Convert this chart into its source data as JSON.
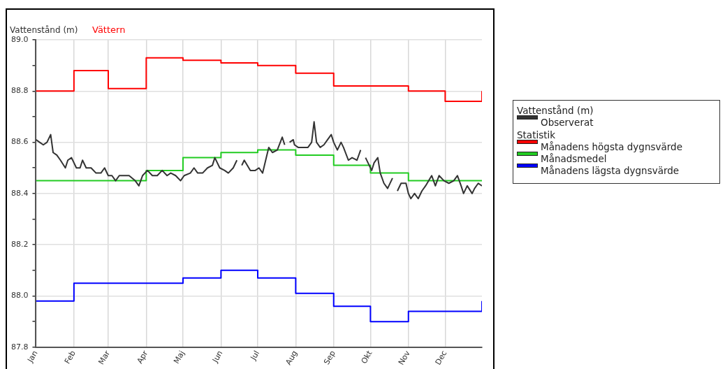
{
  "chart_data": {
    "type": "line",
    "title": "Vättern",
    "ylabel": "Vattenstånd (m)",
    "legend_title": "Vattenstånd (m)",
    "annotations": [
      "Statistik"
    ],
    "xlim": [
      "--01-01",
      "--12-31"
    ],
    "xticks": [
      {
        "value": "--01-01",
        "label": "Jan"
      },
      {
        "value": "--02-01",
        "label": "Feb"
      },
      {
        "value": "--03-01",
        "label": "Mar"
      },
      {
        "value": "--04-01",
        "label": "Apr"
      },
      {
        "value": "--05-01",
        "label": "Maj"
      },
      {
        "value": "--06-01",
        "label": "Jun"
      },
      {
        "value": "--07-01",
        "label": "Jul"
      },
      {
        "value": "--08-01",
        "label": "Aug"
      },
      {
        "value": "--09-01",
        "label": "Sep"
      },
      {
        "value": "--10-01",
        "label": "Okt"
      },
      {
        "value": "--11-01",
        "label": "Nov"
      },
      {
        "value": "--12-01",
        "label": "Dec"
      }
    ],
    "ylim": [
      87.8,
      89.0
    ],
    "yticks": [
      {
        "value": 87.8,
        "label": "87.8"
      },
      {
        "value": 87.9,
        "label": null
      },
      {
        "value": 88.0,
        "label": "88.0"
      },
      {
        "value": 88.1,
        "label": null
      },
      {
        "value": 88.2,
        "label": "88.2"
      },
      {
        "value": 88.3,
        "label": null
      },
      {
        "value": 88.4,
        "label": "88.4"
      },
      {
        "value": 88.5,
        "label": null
      },
      {
        "value": 88.6,
        "label": "88.6"
      },
      {
        "value": 88.7,
        "label": null
      },
      {
        "value": 88.8,
        "label": "88.8"
      },
      {
        "value": 88.9,
        "label": null
      },
      {
        "value": 89.0,
        "label": "89.0"
      }
    ],
    "grid": true,
    "legend": "right",
    "marker": "none",
    "line_style": "solid",
    "series": [
      {
        "name": "Observerat",
        "color": "#333333",
        "x": [
          "--01-01",
          "--01-04",
          "--01-07",
          "--01-10",
          "--01-13",
          "--01-15",
          "--01-18",
          "--01-21",
          "--01-25",
          "--01-27",
          "--01-30",
          "--02-03",
          "--02-06",
          "--02-08",
          "--02-11",
          "--02-15",
          "--02-19",
          "--02-23",
          "--02-26",
          "--03-01",
          "--03-04",
          "--03-07",
          "--03-10",
          "--03-14",
          "--03-18",
          "--03-23",
          "--03-26",
          "--03-29",
          "--04-02",
          "--04-06",
          "--04-10",
          "--04-14",
          "--04-18",
          "--04-21",
          "--04-25",
          "--04-29",
          "--05-02",
          "--05-07",
          "--05-10",
          "--05-13",
          "--05-17",
          "--05-21",
          "--05-25",
          "--05-27",
          "--05-31",
          "--06-04",
          "--06-07",
          "--06-11",
          "--06-14",
          "--06-16",
          "--06-18",
          "--06-20",
          "--06-25",
          "--06-29",
          "--07-02",
          "--07-05",
          "--07-08",
          "--07-10",
          "--07-13",
          "--07-17",
          "--07-21",
          "--07-23",
          "--07-25",
          "--07-27",
          "--07-30",
          "--07-31",
          "--08-03",
          "--08-07",
          "--08-11",
          "--08-14",
          "--08-16",
          "--08-18",
          "--08-21",
          "--08-24",
          "--08-27",
          "--08-30",
          "--09-01",
          "--09-04",
          "--09-07",
          "--09-09",
          "--09-13",
          "--09-16",
          "--09-20",
          "--09-23",
          "--09-25",
          "--09-27",
          "--10-02",
          "--10-04",
          "--10-07",
          "--10-09",
          "--10-12",
          "--10-15",
          "--10-19",
          "--10-21",
          "--10-23",
          "--10-26",
          "--10-30",
          "--11-01",
          "--11-03",
          "--11-06",
          "--11-09",
          "--11-12",
          "--11-15",
          "--11-20",
          "--11-23",
          "--11-26",
          "--11-30",
          "--12-04",
          "--12-08",
          "--12-11",
          "--12-14",
          "--12-16",
          "--12-19",
          "--12-23",
          "--12-25",
          "--12-28",
          "--12-31"
        ],
        "values": [
          88.61,
          88.6,
          88.59,
          88.6,
          88.63,
          88.56,
          88.55,
          88.53,
          88.5,
          88.53,
          88.54,
          88.5,
          88.5,
          88.53,
          88.5,
          88.5,
          88.48,
          88.48,
          88.5,
          88.47,
          88.47,
          88.45,
          88.47,
          88.47,
          88.47,
          88.45,
          88.43,
          88.47,
          88.49,
          88.47,
          88.47,
          88.49,
          88.47,
          88.48,
          88.47,
          88.45,
          88.47,
          88.48,
          88.5,
          88.48,
          88.48,
          88.5,
          88.51,
          88.54,
          88.5,
          88.49,
          88.48,
          88.5,
          88.53,
          null,
          88.51,
          88.53,
          88.49,
          88.49,
          88.5,
          88.48,
          88.54,
          88.58,
          88.56,
          88.57,
          88.62,
          88.59,
          null,
          88.6,
          88.61,
          88.59,
          88.58,
          88.58,
          88.58,
          88.6,
          88.68,
          88.6,
          88.58,
          88.59,
          88.61,
          88.63,
          88.6,
          88.57,
          88.6,
          88.58,
          88.53,
          88.54,
          88.53,
          88.57,
          null,
          88.54,
          88.49,
          88.52,
          88.54,
          88.48,
          88.44,
          88.42,
          88.46,
          null,
          88.41,
          88.44,
          88.44,
          88.4,
          88.38,
          88.4,
          88.38,
          88.41,
          88.43,
          88.47,
          88.43,
          88.47,
          88.45,
          88.44,
          88.45,
          88.47,
          88.43,
          88.4,
          88.43,
          88.4,
          88.42,
          88.44,
          88.43
        ]
      },
      {
        "name": "Månadens högsta dygnsvärde",
        "type": "step",
        "color": "#ff0000",
        "x": [
          "--01-01",
          "--02-01",
          "--03-01",
          "--04-01",
          "--05-01",
          "--06-01",
          "--07-01",
          "--08-01",
          "--09-01",
          "--10-01",
          "--11-01",
          "--12-01",
          "--12-31"
        ],
        "values": [
          88.8,
          88.88,
          88.81,
          88.93,
          88.92,
          88.91,
          88.9,
          88.87,
          88.82,
          88.82,
          88.8,
          88.76,
          88.8
        ]
      },
      {
        "name": "Månadsmedel",
        "type": "step",
        "color": "#22cc22",
        "x": [
          "--01-01",
          "--02-01",
          "--03-01",
          "--04-01",
          "--05-01",
          "--06-01",
          "--07-01",
          "--08-01",
          "--09-01",
          "--10-01",
          "--11-01",
          "--12-01",
          "--12-31"
        ],
        "values": [
          88.45,
          88.45,
          88.45,
          88.49,
          88.54,
          88.56,
          88.57,
          88.55,
          88.51,
          88.48,
          88.45,
          88.45,
          88.45
        ]
      },
      {
        "name": "Månadens lägsta dygnsvärde",
        "type": "step",
        "color": "#0000ff",
        "x": [
          "--01-01",
          "--02-01",
          "--03-01",
          "--04-01",
          "--05-01",
          "--06-01",
          "--07-01",
          "--08-01",
          "--09-01",
          "--10-01",
          "--11-01",
          "--12-01",
          "--12-31"
        ],
        "values": [
          87.98,
          88.05,
          88.05,
          88.05,
          88.07,
          88.1,
          88.07,
          88.01,
          87.96,
          87.9,
          87.94,
          87.94,
          87.98
        ]
      }
    ]
  }
}
